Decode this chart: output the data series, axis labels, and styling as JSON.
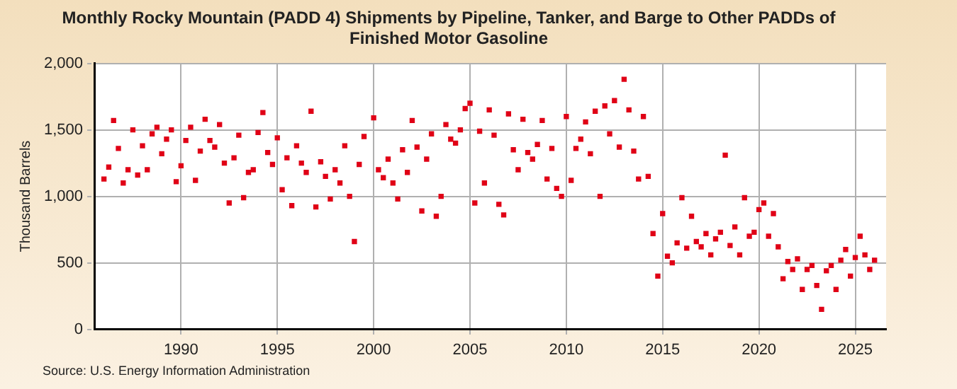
{
  "chart_data": {
    "type": "scatter",
    "title": "Monthly Rocky Mountain (PADD 4) Shipments by Pipeline, Tanker, and Barge to Other PADDs of Finished Motor Gasoline",
    "ylabel": "Thousand Barrels",
    "annotations": [
      "Source: U.S. Energy Information Administration"
    ],
    "x": [
      1986.0,
      1986.25,
      1986.5,
      1986.75,
      1987.0,
      1987.25,
      1987.5,
      1987.75,
      1988.0,
      1988.25,
      1988.5,
      1988.75,
      1989.0,
      1989.25,
      1989.5,
      1989.75,
      1990.0,
      1990.25,
      1990.5,
      1990.75,
      1991.0,
      1991.25,
      1991.5,
      1991.75,
      1992.0,
      1992.25,
      1992.5,
      1992.75,
      1993.0,
      1993.25,
      1993.5,
      1993.75,
      1994.0,
      1994.25,
      1994.5,
      1994.75,
      1995.0,
      1995.25,
      1995.5,
      1995.75,
      1996.0,
      1996.25,
      1996.5,
      1996.75,
      1997.0,
      1997.25,
      1997.5,
      1997.75,
      1998.0,
      1998.25,
      1998.5,
      1998.75,
      1999.0,
      1999.25,
      1999.5,
      2000.0,
      2000.25,
      2000.5,
      2000.75,
      2001.0,
      2001.25,
      2001.5,
      2001.75,
      2002.0,
      2002.25,
      2002.5,
      2002.75,
      2003.0,
      2003.25,
      2003.5,
      2003.75,
      2004.0,
      2004.25,
      2004.5,
      2004.75,
      2005.0,
      2005.25,
      2005.5,
      2005.75,
      2006.0,
      2006.25,
      2006.5,
      2006.75,
      2007.0,
      2007.25,
      2007.5,
      2007.75,
      2008.0,
      2008.25,
      2008.5,
      2008.75,
      2009.0,
      2009.25,
      2009.5,
      2009.75,
      2010.0,
      2010.25,
      2010.5,
      2010.75,
      2011.0,
      2011.25,
      2011.5,
      2011.75,
      2012.0,
      2012.25,
      2012.5,
      2012.75,
      2013.0,
      2013.25,
      2013.5,
      2013.75,
      2014.0,
      2014.25,
      2014.5,
      2014.75,
      2015.0,
      2015.25,
      2015.5,
      2015.75,
      2016.0,
      2016.25,
      2016.5,
      2016.75,
      2017.0,
      2017.25,
      2017.5,
      2017.75,
      2018.0,
      2018.25,
      2018.5,
      2018.75,
      2019.0,
      2019.25,
      2019.5,
      2019.75,
      2020.0,
      2020.25,
      2020.5,
      2020.75,
      2021.0,
      2021.25,
      2021.5,
      2021.75,
      2022.0,
      2022.25,
      2022.5,
      2022.75,
      2023.0,
      2023.25,
      2023.5,
      2023.75,
      2024.0,
      2024.25,
      2024.5,
      2024.75,
      2025.0,
      2025.25,
      2025.5,
      2025.75,
      2026.0
    ],
    "values": [
      1130,
      1220,
      1570,
      1360,
      1100,
      1200,
      1500,
      1160,
      1380,
      1200,
      1470,
      1520,
      1320,
      1430,
      1500,
      1110,
      1230,
      1420,
      1520,
      1120,
      1340,
      1580,
      1420,
      1370,
      1540,
      1250,
      950,
      1290,
      1460,
      990,
      1180,
      1200,
      1480,
      1630,
      1330,
      1240,
      1440,
      1050,
      1290,
      930,
      1380,
      1250,
      1180,
      1640,
      920,
      1260,
      1150,
      980,
      1200,
      1100,
      1380,
      1000,
      660,
      1240,
      1450,
      1590,
      1200,
      1140,
      1280,
      1100,
      980,
      1350,
      1180,
      1570,
      1370,
      890,
      1280,
      1470,
      850,
      1000,
      1540,
      1430,
      1400,
      1500,
      1660,
      1700,
      950,
      1490,
      1100,
      1650,
      1460,
      940,
      860,
      1620,
      1350,
      1200,
      1580,
      1330,
      1280,
      1390,
      1570,
      1130,
      1360,
      1060,
      1000,
      1600,
      1120,
      1360,
      1430,
      1560,
      1320,
      1640,
      1000,
      1680,
      1470,
      1720,
      1370,
      1880,
      1650,
      1340,
      1130,
      1600,
      1150,
      720,
      400,
      870,
      550,
      500,
      650,
      990,
      610,
      850,
      660,
      620,
      720,
      560,
      680,
      730,
      1310,
      630,
      770,
      560,
      990,
      700,
      730,
      900,
      950,
      700,
      870,
      620,
      380,
      510,
      450,
      530,
      300,
      450,
      480,
      330,
      150,
      440,
      480,
      300,
      520,
      600,
      400,
      540,
      700,
      560,
      450,
      520
    ],
    "color": "#e00016",
    "marker": "square",
    "xlim": [
      1985.5,
      2026.6
    ],
    "xticks": [
      1990,
      1995,
      2000,
      2005,
      2010,
      2015,
      2020,
      2025
    ],
    "ylim": [
      0,
      2000
    ],
    "yticks": [
      0,
      500,
      {
        "value": 1000,
        "label": "1,000"
      },
      {
        "value": 1500,
        "label": "1,500"
      },
      {
        "value": 2000,
        "label": "2,000"
      }
    ],
    "grid": true,
    "legend": false
  }
}
